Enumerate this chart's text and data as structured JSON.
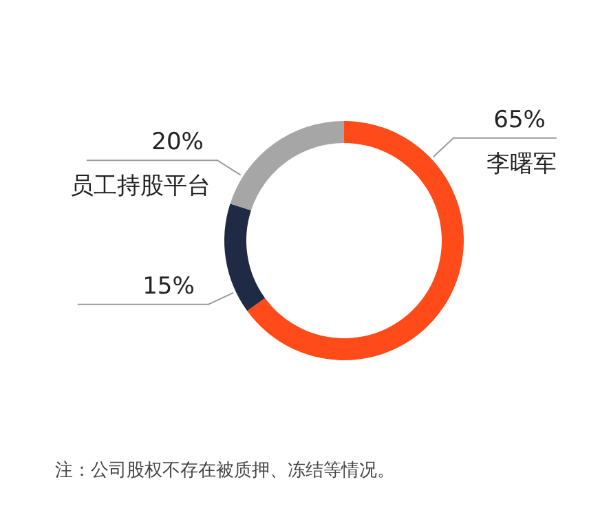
{
  "chart_data": {
    "type": "donut",
    "categories": [
      "李曙军",
      null,
      "员工持股平台"
    ],
    "values": [
      65,
      15,
      20
    ],
    "colors": [
      "#ff4a1a",
      "#1f2a44",
      "#a6a6a6"
    ],
    "value_labels": [
      "65%",
      "15%",
      "20%"
    ],
    "annotations": [
      "注：公司股权不存在被质押、冻结等情况。"
    ]
  }
}
